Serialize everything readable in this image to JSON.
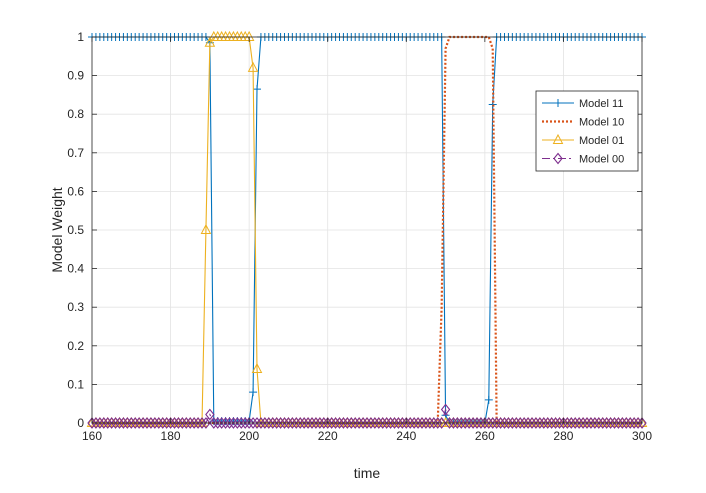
{
  "chart_data": {
    "type": "line",
    "xlabel": "time",
    "ylabel": "Model Weight",
    "xlim": [
      160,
      300
    ],
    "ylim": [
      0,
      1
    ],
    "xticks": [
      160,
      180,
      200,
      220,
      240,
      260,
      280,
      300
    ],
    "yticks": [
      0,
      0.1,
      0.2,
      0.3,
      0.4,
      0.5,
      0.6,
      0.7,
      0.8,
      0.9,
      1
    ],
    "ytick_labels": [
      "0",
      "0.1",
      "0.2",
      "0.3",
      "0.4",
      "0.5",
      "0.6",
      "0.7",
      "0.8",
      "0.9",
      "1"
    ],
    "grid": true,
    "legend_position": "top-right",
    "series": [
      {
        "name": "Model 11",
        "color": "#0072bd",
        "marker": "plus",
        "style": "solid",
        "points": [
          [
            160,
            1
          ],
          [
            189,
            1
          ],
          [
            190,
            0.985
          ],
          [
            191,
            0.005
          ],
          [
            200,
            0.005
          ],
          [
            201,
            0.08
          ],
          [
            202,
            0.865
          ],
          [
            203,
            1
          ],
          [
            249,
            1
          ],
          [
            250,
            0.02
          ],
          [
            251,
            0
          ],
          [
            260,
            0
          ],
          [
            261,
            0.06
          ],
          [
            262,
            0.825
          ],
          [
            263,
            1
          ],
          [
            300,
            1
          ]
        ]
      },
      {
        "name": "Model 10",
        "color": "#d95319",
        "marker": "none",
        "style": "dotted",
        "points": [
          [
            160,
            0
          ],
          [
            248,
            0
          ],
          [
            249,
            0.3
          ],
          [
            250,
            0.97
          ],
          [
            251,
            1
          ],
          [
            261,
            1
          ],
          [
            262,
            0.97
          ],
          [
            263,
            0
          ],
          [
            300,
            0
          ]
        ]
      },
      {
        "name": "Model 01",
        "color": "#edb120",
        "marker": "triangle",
        "style": "solid",
        "points": [
          [
            160,
            0
          ],
          [
            188,
            0
          ],
          [
            189,
            0.5
          ],
          [
            190,
            0.985
          ],
          [
            191,
            1
          ],
          [
            200,
            1
          ],
          [
            201,
            0.92
          ],
          [
            202,
            0.14
          ],
          [
            203,
            0
          ],
          [
            300,
            0
          ]
        ]
      },
      {
        "name": "Model 00",
        "color": "#7e2f8e",
        "marker": "diamond",
        "style": "dashdot",
        "points": [
          [
            160,
            0
          ],
          [
            189,
            0
          ],
          [
            190,
            0.022
          ],
          [
            191,
            0
          ],
          [
            249,
            0
          ],
          [
            250,
            0.035
          ],
          [
            251,
            0
          ],
          [
            300,
            0
          ]
        ]
      }
    ]
  }
}
